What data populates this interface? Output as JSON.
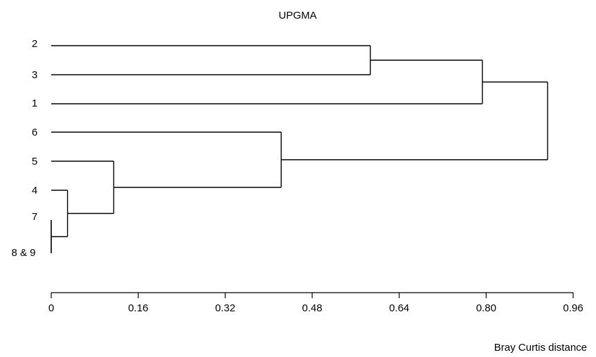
{
  "chart_data": {
    "type": "dendrogram",
    "title": "UPGMA",
    "xlabel": "Bray Curtis distance",
    "xlim": [
      0,
      0.96
    ],
    "ticks": [
      "0",
      "0.16",
      "0.32",
      "0.48",
      "0.64",
      "0.80",
      "0.96"
    ],
    "tick_values": [
      0,
      0.16,
      0.32,
      0.48,
      0.64,
      0.8,
      0.96
    ],
    "leaves": [
      "2",
      "3",
      "1",
      "6",
      "5",
      "4",
      "7",
      "8 & 9"
    ],
    "merges": [
      {
        "children": [
          "7",
          "8 & 9"
        ],
        "height": 0.0
      },
      {
        "children": [
          "4",
          "7+8&9"
        ],
        "height": 0.03
      },
      {
        "children": [
          "5",
          "4+7+8&9"
        ],
        "height": 0.115
      },
      {
        "children": [
          "6",
          "5+4+7+8&9"
        ],
        "height": 0.423
      },
      {
        "children": [
          "2",
          "3"
        ],
        "height": 0.587
      },
      {
        "children": [
          "2+3",
          "1"
        ],
        "height": 0.793
      },
      {
        "children": [
          "2+3+1",
          "6+5+4+7+8&9"
        ],
        "height": 0.913
      }
    ]
  }
}
